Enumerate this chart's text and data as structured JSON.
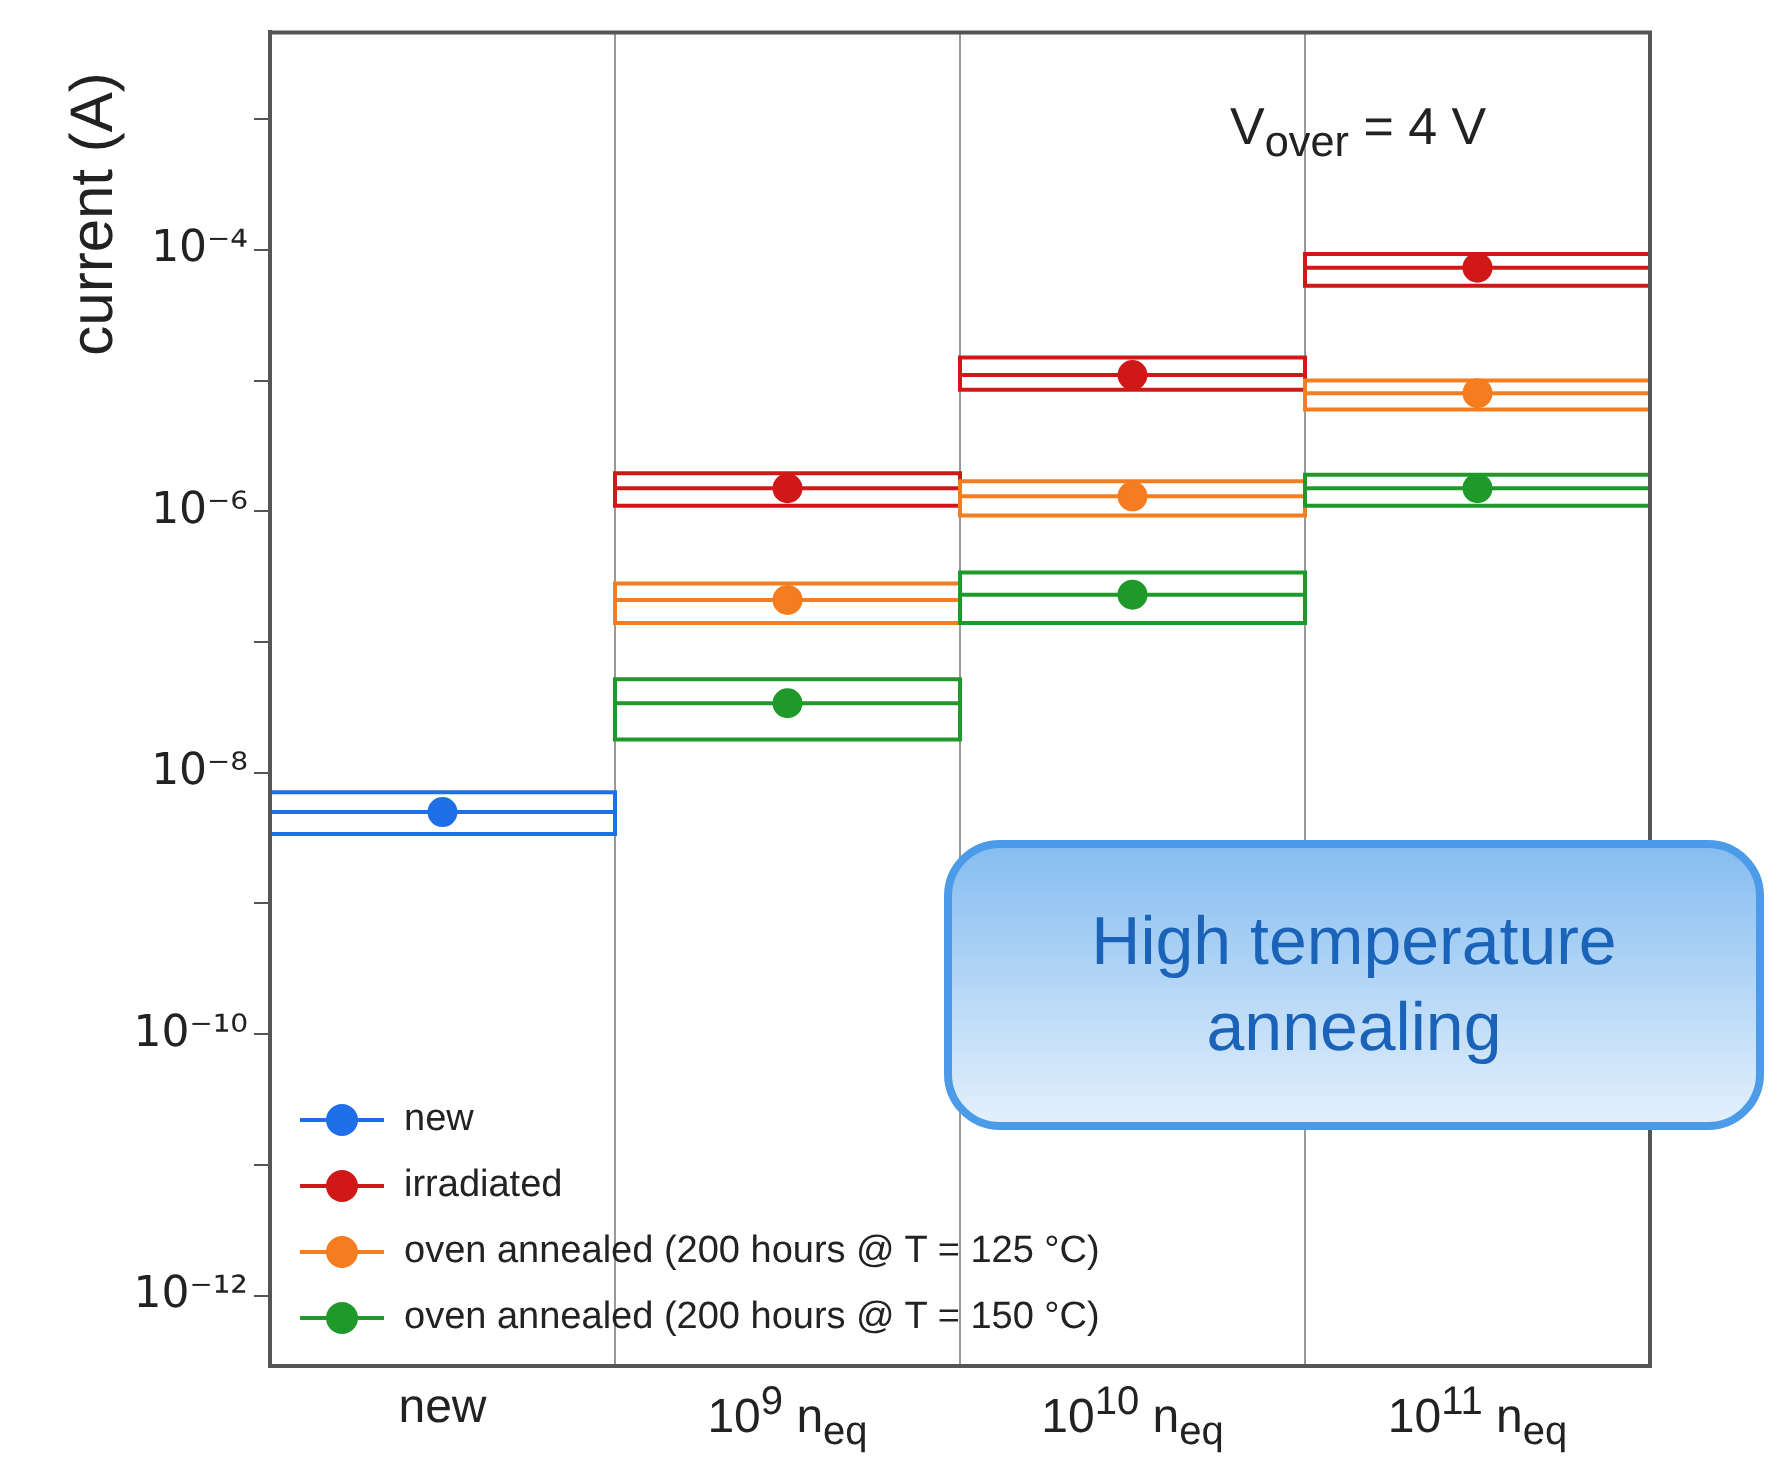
{
  "chart_data": {
    "type": "box",
    "ylabel": "current (A)",
    "categories": [
      "new",
      "10$^{9}$ n$_{eq}$",
      "10$^{10}$ n$_{eq}$",
      "10$^{11}$ n$_{eq}$"
    ],
    "series": [
      {
        "name": "new",
        "color": "#1f6fe8",
        "boxes": [
          {
            "low": 3.4e-09,
            "q1": 3.4e-09,
            "median": 5e-09,
            "q3": 7.1e-09,
            "high": 7.1e-09,
            "mean": 5e-09
          },
          null,
          null,
          null
        ]
      },
      {
        "name": "irradiated",
        "color": "#d01818",
        "boxes": [
          null,
          {
            "low": 1.1e-06,
            "q1": 1.1e-06,
            "median": 1.5e-06,
            "q3": 1.95e-06,
            "high": 1.95e-06,
            "mean": 1.5e-06
          },
          {
            "low": 8.5e-06,
            "q1": 8.5e-06,
            "median": 1.1e-05,
            "q3": 1.5e-05,
            "high": 1.5e-05,
            "mean": 1.1e-05
          },
          {
            "low": 5.3e-05,
            "q1": 5.3e-05,
            "median": 7.3e-05,
            "q3": 9.3e-05,
            "high": 9.3e-05,
            "mean": 7.3e-05
          }
        ]
      },
      {
        "name": "oven annealed (200 hours @ T = 125 °C)",
        "color": "#f57c1f",
        "boxes": [
          null,
          {
            "low": 1.4e-07,
            "q1": 1.4e-07,
            "median": 2.1e-07,
            "q3": 2.8e-07,
            "high": 2.8e-07,
            "mean": 2.1e-07
          },
          {
            "low": 9.3e-07,
            "q1": 9.3e-07,
            "median": 1.3e-06,
            "q3": 1.7e-06,
            "high": 1.7e-06,
            "mean": 1.3e-06
          },
          {
            "low": 6e-06,
            "q1": 6e-06,
            "median": 8e-06,
            "q3": 1e-05,
            "high": 1e-05,
            "mean": 8e-06
          }
        ]
      },
      {
        "name": "oven annealed (200 hours @ T = 150 °C)",
        "color": "#1f9a2a",
        "boxes": [
          null,
          {
            "low": 1.8e-08,
            "q1": 1.8e-08,
            "median": 3.4e-08,
            "q3": 5.2e-08,
            "high": 5.2e-08,
            "mean": 3.4e-08
          },
          {
            "low": 1.4e-07,
            "q1": 1.4e-07,
            "median": 2.3e-07,
            "q3": 3.4e-07,
            "high": 3.4e-07,
            "mean": 2.3e-07
          },
          {
            "low": 1.1e-06,
            "q1": 1.1e-06,
            "median": 1.5e-06,
            "q3": 1.9e-06,
            "high": 1.9e-06,
            "mean": 1.5e-06
          }
        ]
      }
    ],
    "log": "y",
    "ylim": [
      2.9e-13,
      0.0046
    ],
    "yticks": [
      {
        "value": 1e-12,
        "label": "10⁻¹²"
      },
      {
        "value": 1e-11,
        "label": null
      },
      {
        "value": 1e-10,
        "label": "10⁻¹⁰"
      },
      {
        "value": 1e-09,
        "label": null
      },
      {
        "value": 1e-08,
        "label": "10⁻⁸"
      },
      {
        "value": 1e-07,
        "label": null
      },
      {
        "value": 1e-06,
        "label": "10⁻⁶"
      },
      {
        "value": 1e-05,
        "label": null
      },
      {
        "value": 0.0001,
        "label": "10⁻⁴"
      },
      {
        "value": 0.001,
        "label": null
      }
    ],
    "grid": "x",
    "legend": "bottom left",
    "marker": "circle",
    "annotations": [
      "V$_{over}$ = 4 V",
      "High temperature annealing"
    ]
  }
}
